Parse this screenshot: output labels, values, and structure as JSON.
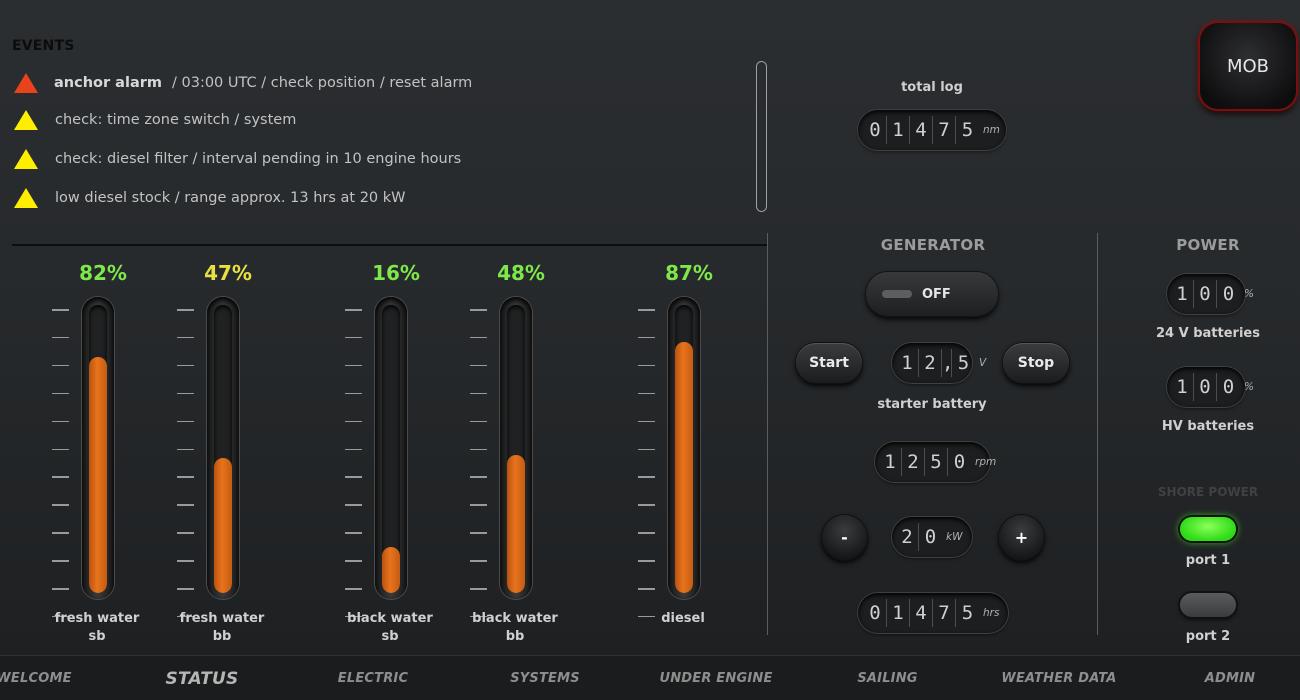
{
  "events": {
    "title": "EVENTS",
    "items": [
      {
        "severity": "alarm",
        "bold": "anchor alarm",
        "text": "/ 03:00 UTC / check position / reset alarm"
      },
      {
        "severity": "warning",
        "bold": "",
        "text": "check: time zone switch / system"
      },
      {
        "severity": "warning",
        "bold": "",
        "text": "check: diesel filter / interval pending in 10 engine hours"
      },
      {
        "severity": "warning",
        "bold": "",
        "text": "low diesel stock / range approx. 13 hrs at 20 kW"
      }
    ]
  },
  "tanks": [
    {
      "percent_label": "82%",
      "level": 0.82,
      "color": "#7ee84a",
      "label_line1": "fresh water",
      "label_line2": "sb"
    },
    {
      "percent_label": "47%",
      "level": 0.47,
      "color": "#e8e040",
      "label_line1": "fresh water",
      "label_line2": "bb"
    },
    {
      "percent_label": "16%",
      "level": 0.16,
      "color": "#7ee84a",
      "label_line1": "black water",
      "label_line2": "sb"
    },
    {
      "percent_label": "48%",
      "level": 0.48,
      "color": "#7ee84a",
      "label_line1": "black water",
      "label_line2": "bb"
    },
    {
      "percent_label": "87%",
      "level": 0.87,
      "color": "#7ee84a",
      "label_line1": "diesel",
      "label_line2": ""
    }
  ],
  "total_log": {
    "label": "total log",
    "digits": [
      "0",
      "1",
      "4",
      "7",
      "5"
    ],
    "unit": "nm"
  },
  "generator": {
    "title": "GENERATOR",
    "toggle_label": "OFF",
    "start_label": "Start",
    "stop_label": "Stop",
    "voltage": {
      "digits": [
        "1",
        "2",
        ",",
        "5"
      ],
      "unit": "V"
    },
    "voltage_label": "starter battery",
    "rpm": {
      "digits": [
        "1",
        "2",
        "5",
        "0"
      ],
      "unit": "rpm"
    },
    "minus_label": "-",
    "plus_label": "+",
    "power": {
      "digits": [
        "2",
        "0"
      ],
      "unit": "kW"
    },
    "hours": {
      "digits": [
        "0",
        "1",
        "4",
        "7",
        "5"
      ],
      "unit": "hrs"
    }
  },
  "power": {
    "title": "POWER",
    "batt24": {
      "digits": [
        "1",
        "0",
        "0"
      ],
      "unit": "%",
      "label": "24 V batteries"
    },
    "hv": {
      "digits": [
        "1",
        "0",
        "0"
      ],
      "unit": "%",
      "label": "HV batteries"
    },
    "shore_title": "SHORE POWER",
    "port1": {
      "label": "port 1",
      "state": "on"
    },
    "port2": {
      "label": "port 2",
      "state": "off"
    }
  },
  "mob_label": "MOB",
  "nav": {
    "items": [
      {
        "label": "WELCOME",
        "active": false
      },
      {
        "label": "STATUS",
        "active": true
      },
      {
        "label": "ELECTRIC",
        "active": false
      },
      {
        "label": "SYSTEMS",
        "active": false
      },
      {
        "label": "UNDER ENGINE",
        "active": false
      },
      {
        "label": "SAILING",
        "active": false
      },
      {
        "label": "WEATHER DATA",
        "active": false
      },
      {
        "label": "ADMIN",
        "active": false
      }
    ]
  }
}
